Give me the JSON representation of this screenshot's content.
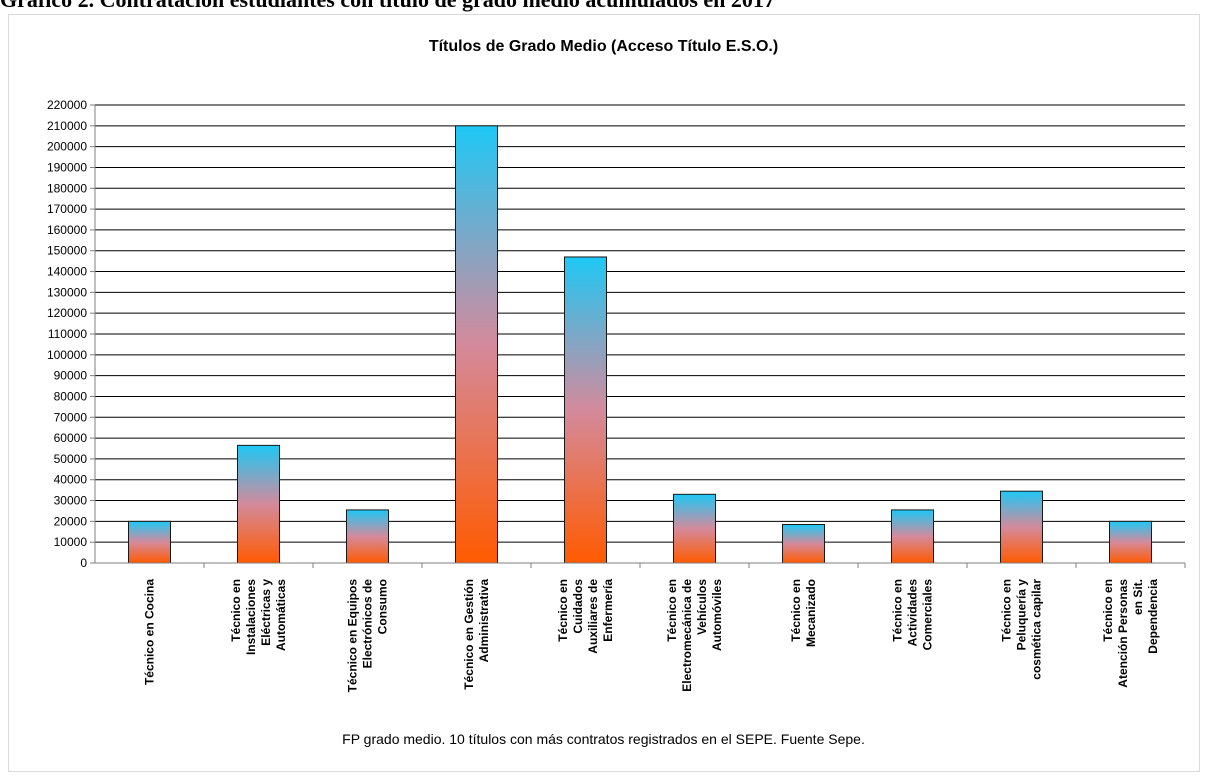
{
  "heading": "Gráfico 2. Contratación estudiantes con título de grado medio acumulados en 2017",
  "chart_data": {
    "type": "bar",
    "title": "Títulos de Grado Medio (Acceso Título E.S.O.)",
    "footer": "FP grado medio. 10 títulos con más contratos registrados en el SEPE. Fuente Sepe.",
    "xlabel": "",
    "ylabel": "",
    "ylim": [
      0,
      220000
    ],
    "ytick_step": 10000,
    "grid": true,
    "legend": "none",
    "categories": [
      [
        "Técnico en Cocina"
      ],
      [
        "Técnico en",
        "Instalaciones",
        "Eléctricas y",
        "Automáticas"
      ],
      [
        "Técnico en Equipos",
        "Electrónicos de",
        "Consumo"
      ],
      [
        "Técnico en Gestión",
        "Administrativa"
      ],
      [
        "Técnico en",
        "Cuidados",
        "Auxiliares de",
        "Enfermería"
      ],
      [
        "Técnico en",
        "Electromecánica de",
        "Vehículos",
        "Automóviles"
      ],
      [
        "Técnico en",
        "Mecanizado"
      ],
      [
        "Técnico en",
        "Actividades",
        "Comerciales"
      ],
      [
        "Técnico en",
        "Peluquería y",
        "cosmética capilar"
      ],
      [
        "Técnico en",
        "Atención Personas",
        "en Sit.",
        "Dependencia"
      ]
    ],
    "values": [
      20000,
      56500,
      25500,
      210000,
      147000,
      33000,
      18500,
      25500,
      34500,
      20000
    ],
    "colors": {
      "bar_top": "#1ec8f5",
      "bar_mid": "#d48a9c",
      "bar_bottom": "#ff5a00",
      "bar_edge": "#1a1a1a",
      "grid": "#000000",
      "axis": "#7f7f7f"
    }
  }
}
